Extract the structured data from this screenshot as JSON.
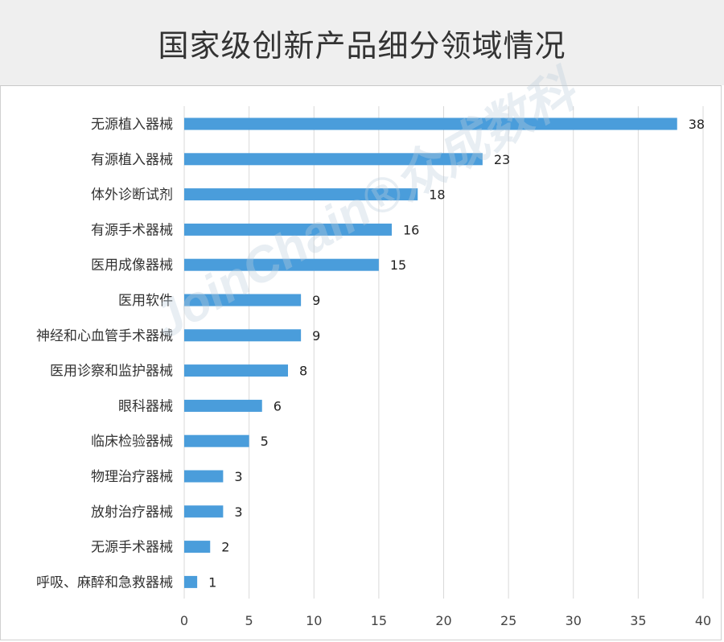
{
  "header": {
    "title": "国家级创新产品细分领域情况"
  },
  "watermark": {
    "text": "JoinChain®众成数科"
  },
  "chart_data": {
    "type": "bar",
    "orientation": "horizontal",
    "title": "国家级创新产品细分领域情况",
    "xlabel": "",
    "ylabel": "",
    "xlim": [
      0,
      40
    ],
    "xticks": [
      0,
      5,
      10,
      15,
      20,
      25,
      30,
      35,
      40
    ],
    "grid": true,
    "bar_color": "#4a9ddb",
    "categories": [
      "无源植入器械",
      "有源植入器械",
      "体外诊断试剂",
      "有源手术器械",
      "医用成像器械",
      "医用软件",
      "神经和心血管手术器械",
      "医用诊察和监护器械",
      "眼科器械",
      "临床检验器械",
      "物理治疗器械",
      "放射治疗器械",
      "无源手术器械",
      "呼吸、麻醉和急救器械"
    ],
    "values": [
      38,
      23,
      18,
      16,
      15,
      9,
      9,
      8,
      6,
      5,
      3,
      3,
      2,
      1
    ]
  }
}
